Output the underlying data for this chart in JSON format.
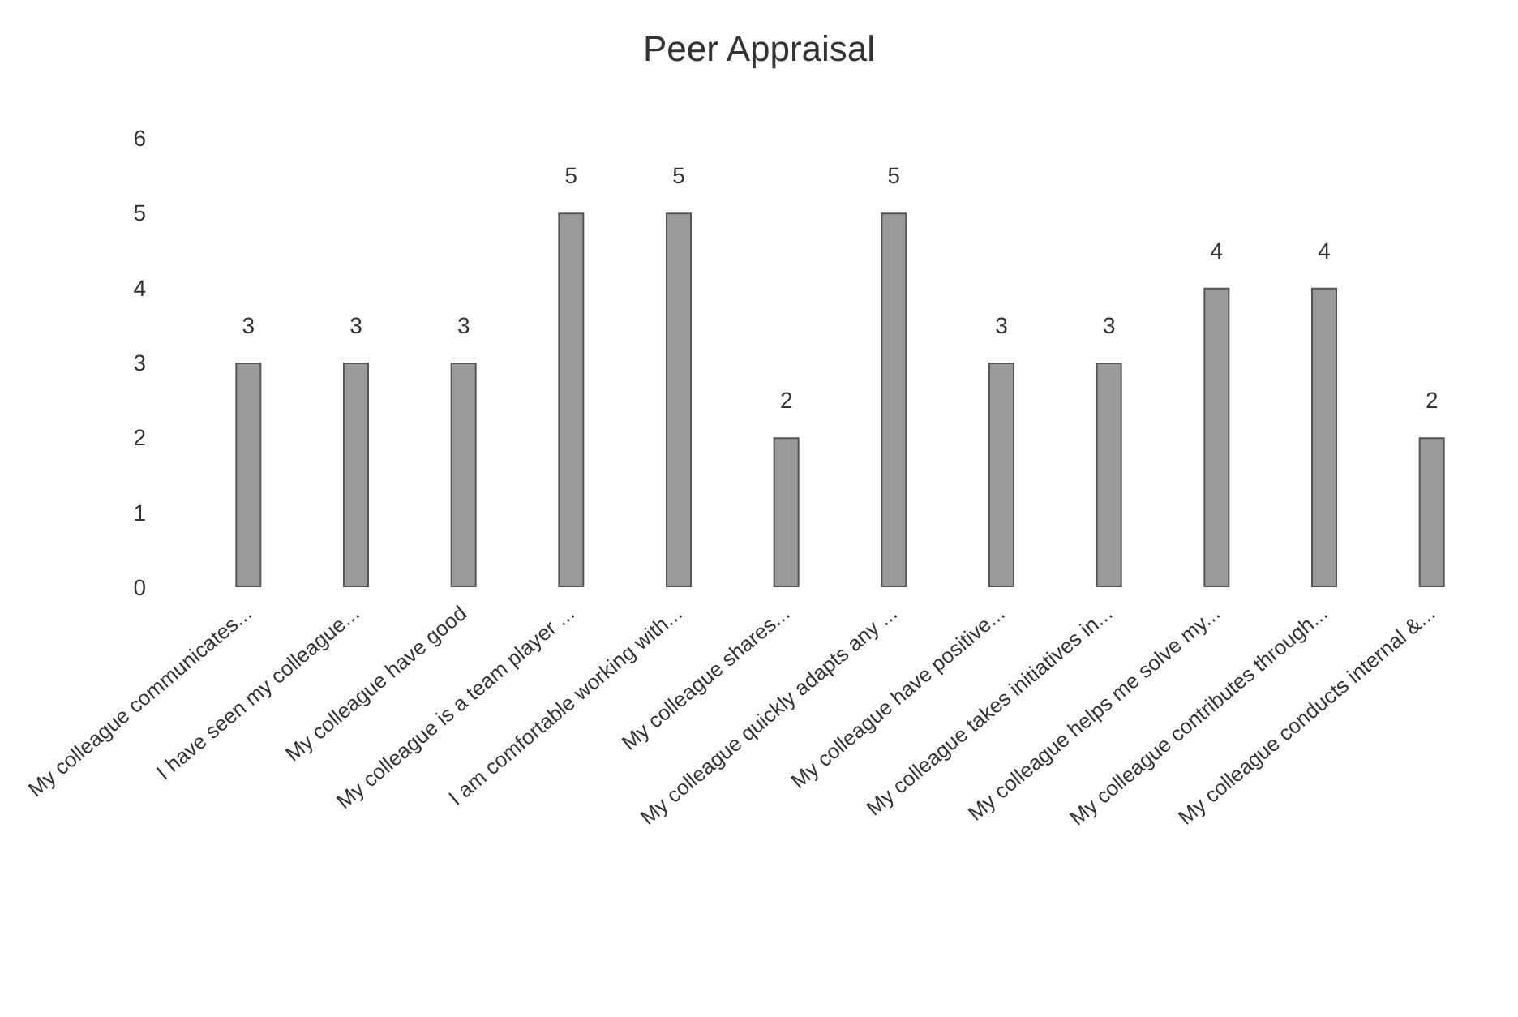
{
  "chart_data": {
    "type": "bar",
    "title": "Peer Appraisal",
    "categories": [
      "My colleague communicates...",
      "I have seen my colleague...",
      "My colleague have good",
      "My colleague is a team player ...",
      "I am comfortable working with...",
      "My colleague shares...",
      "My colleague quickly adapts any ...",
      "My colleague have positive...",
      "My colleague takes initiatives in...",
      "My colleague helps me solve my...",
      "My colleague contributes through...",
      "My colleague conducts internal &..."
    ],
    "values": [
      3,
      3,
      3,
      5,
      5,
      2,
      5,
      3,
      3,
      4,
      4,
      2
    ],
    "color": "#9a9a9a",
    "ylim": [
      0,
      6
    ],
    "yticks": [
      0,
      1,
      2,
      3,
      4,
      5,
      6
    ],
    "grid": false,
    "data_labels": true
  }
}
